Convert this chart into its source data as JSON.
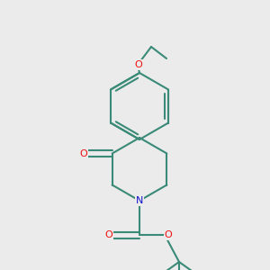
{
  "background_color": "#ebebeb",
  "bond_color": "#3a8a78",
  "atom_colors": {
    "O": "#ee1111",
    "N": "#1111cc",
    "C": "#3a8a78"
  },
  "figsize": [
    3.0,
    3.0
  ],
  "dpi": 100,
  "line_width": 1.5
}
